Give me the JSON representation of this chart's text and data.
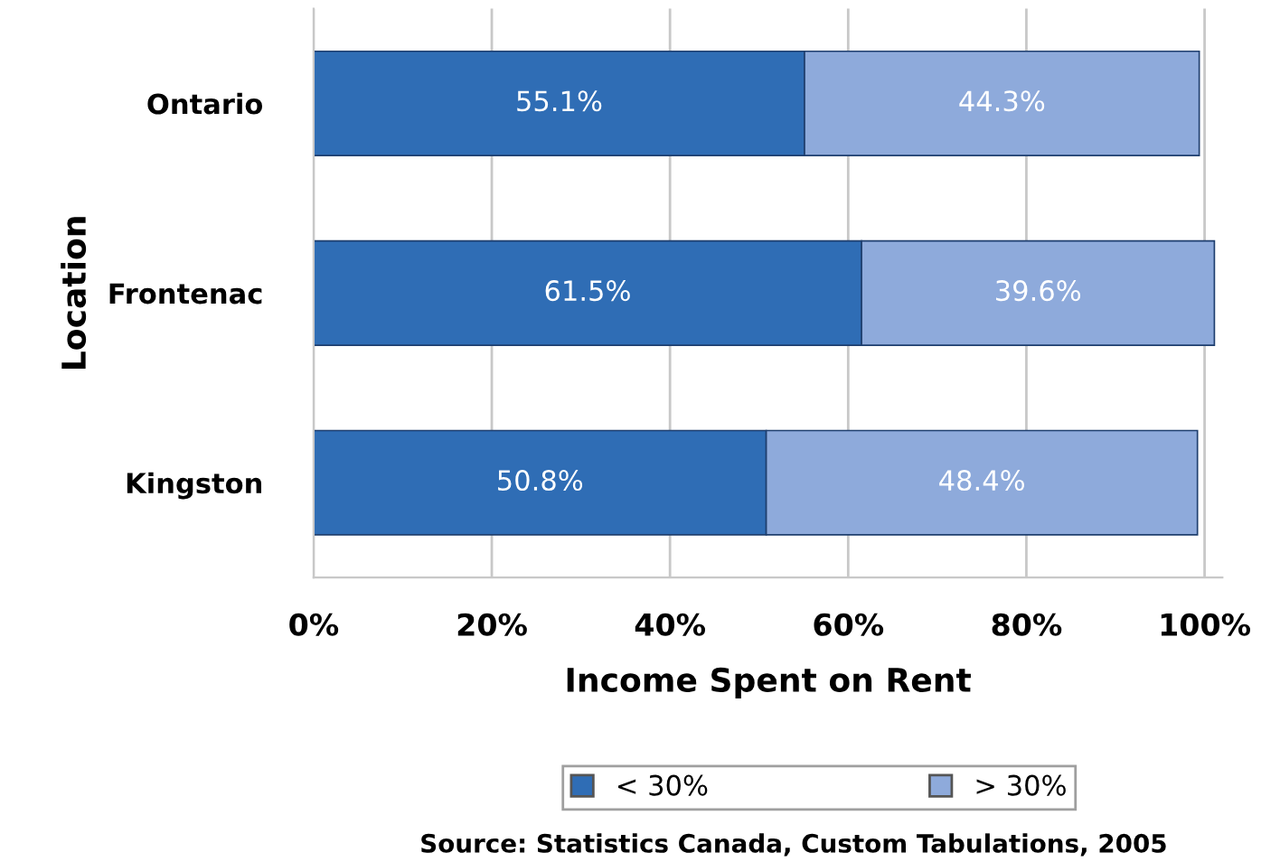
{
  "chart_data": {
    "type": "bar",
    "orientation": "horizontal",
    "stacked": true,
    "categories": [
      "Ontario",
      "Frontenac",
      "Kingston"
    ],
    "series": [
      {
        "name": "< 30%",
        "color": "#2f6db5",
        "values": [
          55.1,
          61.5,
          50.8
        ],
        "value_labels": [
          "55.1%",
          "61.5%",
          "50.8%"
        ]
      },
      {
        "name": "> 30%",
        "color": "#8eaadb",
        "values": [
          44.3,
          39.6,
          48.4
        ],
        "value_labels": [
          "44.3%",
          "39.6%",
          "48.4%"
        ]
      }
    ],
    "xlabel": "Income Spent on Rent",
    "ylabel": "Location",
    "xlim": [
      0,
      102
    ],
    "xticks": [
      {
        "value": 0,
        "label": "0%"
      },
      {
        "value": 20,
        "label": "20%"
      },
      {
        "value": 40,
        "label": "40%"
      },
      {
        "value": 60,
        "label": "60%"
      },
      {
        "value": 80,
        "label": "80%"
      },
      {
        "value": 100,
        "label": "100%"
      }
    ],
    "grid": "x",
    "legend": "bottom",
    "annotations": [
      "Source: Statistics Canada, Custom Tabulations, 2005"
    ]
  }
}
